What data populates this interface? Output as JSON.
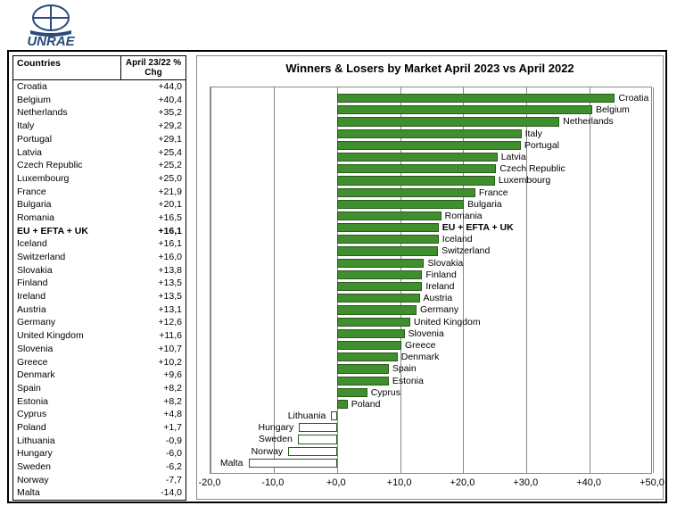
{
  "logo_text": "UNRAE",
  "table": {
    "header_c1": "Countries",
    "header_c2": "April 23/22 % Chg",
    "rows": [
      {
        "name": "Croatia",
        "val": "+44,0"
      },
      {
        "name": "Belgium",
        "val": "+40,4"
      },
      {
        "name": "Netherlands",
        "val": "+35,2"
      },
      {
        "name": "Italy",
        "val": "+29,2"
      },
      {
        "name": "Portugal",
        "val": "+29,1"
      },
      {
        "name": "Latvia",
        "val": "+25,4"
      },
      {
        "name": "Czech Republic",
        "val": "+25,2"
      },
      {
        "name": "Luxembourg",
        "val": "+25,0"
      },
      {
        "name": "France",
        "val": "+21,9"
      },
      {
        "name": "Bulgaria",
        "val": "+20,1"
      },
      {
        "name": "Romania",
        "val": "+16,5"
      },
      {
        "name": "EU + EFTA + UK",
        "val": "+16,1",
        "bold": true
      },
      {
        "name": "Iceland",
        "val": "+16,1"
      },
      {
        "name": "Switzerland",
        "val": "+16,0"
      },
      {
        "name": "Slovakia",
        "val": "+13,8"
      },
      {
        "name": "Finland",
        "val": "+13,5"
      },
      {
        "name": "Ireland",
        "val": "+13,5"
      },
      {
        "name": "Austria",
        "val": "+13,1"
      },
      {
        "name": "Germany",
        "val": "+12,6"
      },
      {
        "name": "United Kingdom",
        "val": "+11,6"
      },
      {
        "name": "Slovenia",
        "val": "+10,7"
      },
      {
        "name": "Greece",
        "val": "+10,2"
      },
      {
        "name": "Denmark",
        "val": "+9,6"
      },
      {
        "name": "Spain",
        "val": "+8,2"
      },
      {
        "name": "Estonia",
        "val": "+8,2"
      },
      {
        "name": "Cyprus",
        "val": "+4,8"
      },
      {
        "name": "Poland",
        "val": "+1,7"
      },
      {
        "name": "Lithuania",
        "val": "-0,9"
      },
      {
        "name": "Hungary",
        "val": "-6,0"
      },
      {
        "name": "Sweden",
        "val": "-6,2"
      },
      {
        "name": "Norway",
        "val": "-7,7"
      },
      {
        "name": "Malta",
        "val": "-14,0"
      }
    ]
  },
  "chart": {
    "title": "Winners & Losers by Market April 2023 vs April 2022",
    "xmin": -20,
    "xmax": 50,
    "xstep": 10,
    "xticks": [
      "-20,0",
      "-10,0",
      "+0,0",
      "+10,0",
      "+20,0",
      "+30,0",
      "+40,0",
      "+50,0"
    ],
    "pos_color": "#3f8f2f",
    "neg_color": "#ffffff",
    "border_color": "#2a5a1a",
    "series": [
      {
        "label": "Croatia",
        "v": 44.0
      },
      {
        "label": "Belgium",
        "v": 40.4
      },
      {
        "label": "Netherlands",
        "v": 35.2
      },
      {
        "label": "Italy",
        "v": 29.2
      },
      {
        "label": "Portugal",
        "v": 29.1
      },
      {
        "label": "Latvia",
        "v": 25.4
      },
      {
        "label": "Czech Republic",
        "v": 25.2
      },
      {
        "label": "Luxembourg",
        "v": 25.0
      },
      {
        "label": "France",
        "v": 21.9
      },
      {
        "label": "Bulgaria",
        "v": 20.1
      },
      {
        "label": "Romania",
        "v": 16.5
      },
      {
        "label": "EU + EFTA + UK",
        "v": 16.1,
        "bold": true
      },
      {
        "label": "Iceland",
        "v": 16.1
      },
      {
        "label": "Switzerland",
        "v": 16.0
      },
      {
        "label": "Slovakia",
        "v": 13.8
      },
      {
        "label": "Finland",
        "v": 13.5
      },
      {
        "label": "Ireland",
        "v": 13.5
      },
      {
        "label": "Austria",
        "v": 13.1
      },
      {
        "label": "Germany",
        "v": 12.6
      },
      {
        "label": "United Kingdom",
        "v": 11.6
      },
      {
        "label": "Slovenia",
        "v": 10.7
      },
      {
        "label": "Greece",
        "v": 10.2
      },
      {
        "label": "Denmark",
        "v": 9.6
      },
      {
        "label": "Spain",
        "v": 8.2
      },
      {
        "label": "Estonia",
        "v": 8.2
      },
      {
        "label": "Cyprus",
        "v": 4.8
      },
      {
        "label": "Poland",
        "v": 1.7
      },
      {
        "label": "Lithuania",
        "v": -0.9
      },
      {
        "label": "Hungary",
        "v": -6.0
      },
      {
        "label": "Sweden",
        "v": -6.2
      },
      {
        "label": "Norway",
        "v": -7.7
      },
      {
        "label": "Malta",
        "v": -14.0
      }
    ]
  }
}
